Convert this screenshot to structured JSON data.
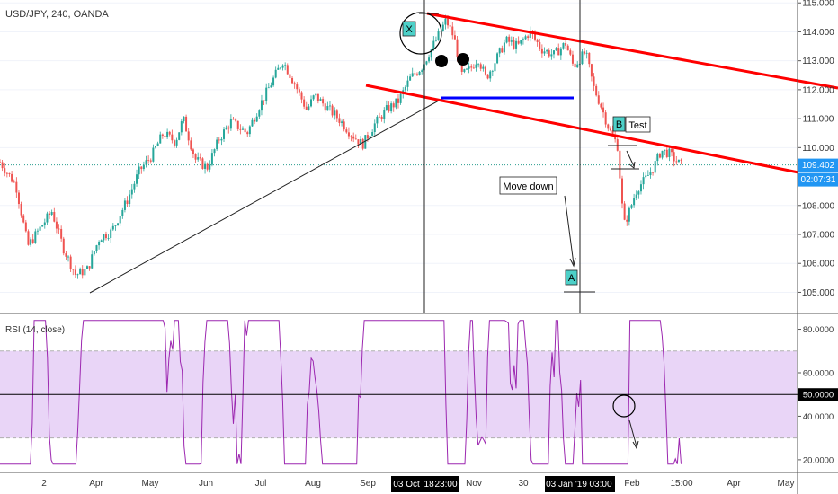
{
  "header": {
    "symbol": "USD/JPY, 240, OANDA"
  },
  "chart_data": [
    {
      "type": "candlestick",
      "title": "USD/JPY, 240, OANDA",
      "ylim": [
        104.3,
        115.1
      ],
      "y_ticks": [
        "115.000",
        "114.000",
        "113.000",
        "112.000",
        "111.000",
        "110.000",
        "108.000",
        "107.000",
        "106.000",
        "105.000"
      ],
      "y_tick_values": [
        115,
        114,
        113,
        112,
        111,
        110,
        108,
        107,
        106,
        105
      ],
      "last_price": "109.402",
      "last_price_value": 109.402,
      "countdown": "02:07:31",
      "x_ticks": [
        "2",
        "Apr",
        "May",
        "Jun",
        "Jul",
        "Aug",
        "Sep",
        "Nov",
        "30",
        "Feb",
        "15:00",
        "Apr",
        "May"
      ],
      "x_highlights": [
        "03 Oct '18",
        "23:00",
        "03 Jan '19",
        "03:00"
      ],
      "price_path": [
        [
          0,
          109.5
        ],
        [
          0.02,
          108.7
        ],
        [
          0.035,
          106.6
        ],
        [
          0.05,
          107.2
        ],
        [
          0.065,
          107.8
        ],
        [
          0.08,
          106.5
        ],
        [
          0.095,
          105.6
        ],
        [
          0.11,
          105.8
        ],
        [
          0.125,
          106.9
        ],
        [
          0.14,
          107.1
        ],
        [
          0.16,
          108.2
        ],
        [
          0.175,
          109.2
        ],
        [
          0.19,
          109.7
        ],
        [
          0.205,
          110.5
        ],
        [
          0.22,
          110.2
        ],
        [
          0.23,
          111.0
        ],
        [
          0.245,
          109.6
        ],
        [
          0.26,
          109.3
        ],
        [
          0.275,
          110.3
        ],
        [
          0.29,
          110.9
        ],
        [
          0.31,
          110.5
        ],
        [
          0.325,
          111.4
        ],
        [
          0.34,
          112.2
        ],
        [
          0.355,
          113.0
        ],
        [
          0.37,
          112.2
        ],
        [
          0.385,
          111.3
        ],
        [
          0.395,
          111.8
        ],
        [
          0.41,
          111.4
        ],
        [
          0.425,
          111.0
        ],
        [
          0.44,
          110.5
        ],
        [
          0.455,
          110.1
        ],
        [
          0.47,
          110.8
        ],
        [
          0.485,
          111.3
        ],
        [
          0.5,
          111.6
        ],
        [
          0.515,
          112.4
        ],
        [
          0.53,
          112.8
        ],
        [
          0.545,
          113.6
        ],
        [
          0.56,
          114.4
        ],
        [
          0.57,
          113.8
        ],
        [
          0.58,
          112.5
        ],
        [
          0.59,
          112.7
        ],
        [
          0.6,
          113.1
        ],
        [
          0.61,
          112.4
        ],
        [
          0.62,
          112.9
        ],
        [
          0.635,
          113.7
        ],
        [
          0.65,
          113.5
        ],
        [
          0.665,
          114.0
        ],
        [
          0.68,
          113.4
        ],
        [
          0.695,
          113.2
        ],
        [
          0.71,
          113.6
        ],
        [
          0.72,
          112.8
        ],
        [
          0.735,
          113.3
        ],
        [
          0.745,
          112.1
        ],
        [
          0.755,
          111.4
        ],
        [
          0.765,
          110.6
        ],
        [
          0.775,
          110.1
        ],
        [
          0.783,
          107.3
        ],
        [
          0.79,
          107.8
        ],
        [
          0.8,
          108.6
        ],
        [
          0.81,
          108.9
        ],
        [
          0.82,
          109.3
        ],
        [
          0.83,
          109.9
        ],
        [
          0.84,
          109.8
        ],
        [
          0.85,
          109.5
        ],
        [
          0.855,
          109.4
        ]
      ],
      "annotations": {
        "label_x": "X",
        "label_a": "A",
        "label_b": "B",
        "test": "Test",
        "move_down": "Move down"
      },
      "colors": {
        "up": "#26a69a",
        "down": "#ef5350",
        "channel": "#ff0000",
        "support": "#0000ff",
        "label_bg": "#4dd0c8"
      }
    },
    {
      "type": "line",
      "title": "RSI (14, close)",
      "ylim": [
        15,
        86
      ],
      "y_ticks": [
        "80.0000",
        "60.0000",
        "40.0000",
        "20.0000"
      ],
      "y_tick_values": [
        80,
        60,
        40,
        20
      ],
      "band": [
        30,
        70
      ],
      "current_value": "50.0000",
      "current_value_num": 50,
      "colors": {
        "line": "#9c27b0",
        "band": "#e9d5f7"
      }
    }
  ]
}
